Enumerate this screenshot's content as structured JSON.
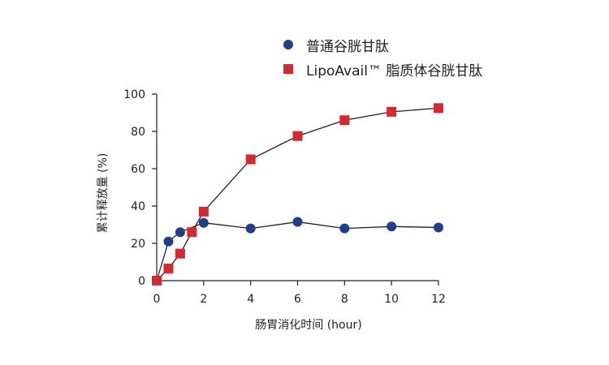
{
  "chart_data": {
    "type": "line",
    "title": "",
    "xlabel": "肠胃消化时间 (hour)",
    "ylabel": "累计释放量 (%)",
    "xlim": [
      0,
      12
    ],
    "ylim": [
      0,
      100
    ],
    "x_ticks": [
      0,
      2,
      4,
      6,
      8,
      10,
      12
    ],
    "y_ticks": [
      0,
      20,
      40,
      60,
      80,
      100
    ],
    "grid": false,
    "legend_position": "top-right",
    "series": [
      {
        "name": "普通谷胱甘肽",
        "marker": "circle",
        "color": "#1f3f8a",
        "x": [
          0,
          0.5,
          1,
          2,
          4,
          6,
          8,
          10,
          12
        ],
        "y": [
          0,
          21,
          26,
          31,
          28,
          31.5,
          28,
          29,
          28.5
        ]
      },
      {
        "name": "LipoAvail™ 脂质体谷胱甘肽",
        "marker": "square",
        "color": "#d7282f",
        "x": [
          0,
          0.5,
          1,
          1.5,
          2,
          4,
          6,
          8,
          10,
          12
        ],
        "y": [
          0,
          6.5,
          14.5,
          26,
          37,
          65,
          77.5,
          86,
          90.5,
          92.5
        ]
      }
    ]
  }
}
